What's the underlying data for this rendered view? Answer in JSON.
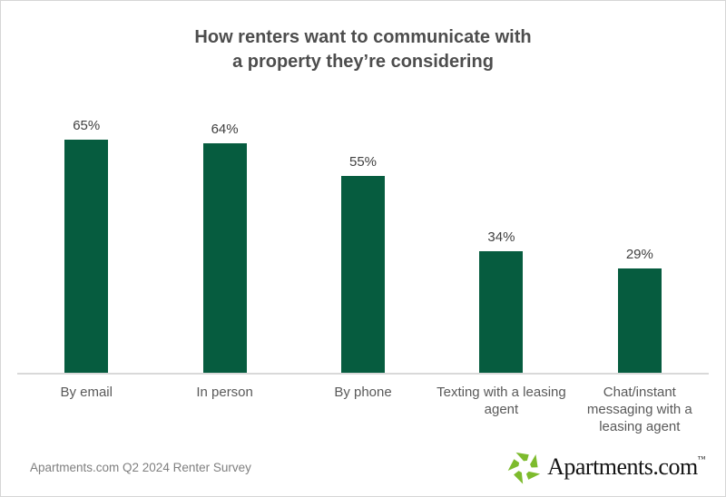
{
  "header": {
    "title_lines": [
      "How renters want to communicate with",
      "a property they’re considering"
    ]
  },
  "chart_data": {
    "type": "bar",
    "title": "How renters want to communicate with a property they’re considering",
    "categories": [
      "By email",
      "In person",
      "By phone",
      "Texting with a leasing agent",
      "Chat/instant messaging with a leasing agent"
    ],
    "values": [
      65,
      64,
      55,
      34,
      29
    ],
    "value_labels": [
      "65%",
      "64%",
      "55%",
      "34%",
      "29%"
    ],
    "xlabel": "",
    "ylabel": "",
    "ylim": [
      0,
      66
    ],
    "grid": false,
    "legend": "none",
    "data_label_position": "above-bar",
    "bar_color": "#065c3f",
    "axis_line_color": "#d9d9d9"
  },
  "footer": {
    "source": "Apartments.com Q2 2024 Renter Survey",
    "logo": {
      "text": "Apartments.com",
      "trademark": "™",
      "icon": "apartments-pinwheel-icon",
      "icon_color": "#7dbb2d"
    }
  },
  "colors": {
    "background": "#ffffff",
    "page_border": "#d6d6d6",
    "title_text": "#4d4d4d",
    "value_text": "#404040",
    "category_text": "#595959",
    "source_text": "#7f7f7f",
    "logo_text": "#141414"
  }
}
